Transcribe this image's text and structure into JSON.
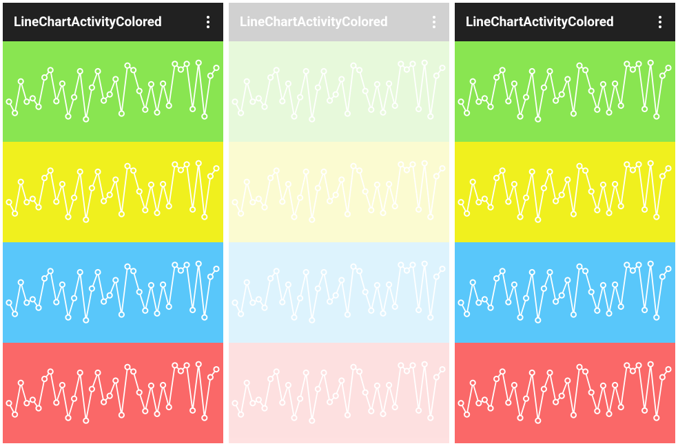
{
  "screens": [
    {
      "title": "LineChartActivityColored"
    },
    {
      "title": "LineChartActivityColored"
    },
    {
      "title": "LineChartActivityColored"
    }
  ],
  "chart_data": [
    {
      "type": "line",
      "color": "#89e551",
      "ylim": [
        -37,
        141
      ],
      "values": [
        34,
        14,
        70,
        34,
        40,
        25,
        77,
        90,
        35,
        66,
        8,
        42,
        88,
        3,
        59,
        88,
        36,
        47,
        74,
        13,
        98,
        90,
        53,
        20,
        65,
        15,
        66,
        27,
        101,
        91,
        101,
        21,
        103,
        8,
        80,
        94
      ]
    },
    {
      "type": "line",
      "color": "#f0f01e",
      "ylim": [
        -37,
        141
      ],
      "values": [
        34,
        14,
        70,
        34,
        40,
        25,
        77,
        90,
        35,
        66,
        8,
        42,
        88,
        3,
        59,
        88,
        36,
        47,
        74,
        13,
        98,
        90,
        53,
        20,
        65,
        15,
        66,
        27,
        101,
        91,
        101,
        21,
        103,
        8,
        80,
        94
      ]
    },
    {
      "type": "line",
      "color": "#59c7fa",
      "ylim": [
        -37,
        141
      ],
      "values": [
        34,
        14,
        70,
        34,
        40,
        25,
        77,
        90,
        35,
        66,
        8,
        42,
        88,
        3,
        59,
        88,
        36,
        47,
        74,
        13,
        98,
        90,
        53,
        20,
        65,
        15,
        66,
        27,
        101,
        91,
        101,
        21,
        103,
        8,
        80,
        94
      ]
    },
    {
      "type": "line",
      "color": "#fa6868",
      "ylim": [
        -37,
        141
      ],
      "values": [
        34,
        14,
        70,
        34,
        40,
        25,
        77,
        90,
        35,
        66,
        8,
        42,
        88,
        3,
        59,
        88,
        36,
        47,
        74,
        13,
        98,
        90,
        53,
        20,
        65,
        15,
        66,
        27,
        101,
        91,
        101,
        21,
        103,
        8,
        80,
        94
      ]
    }
  ]
}
